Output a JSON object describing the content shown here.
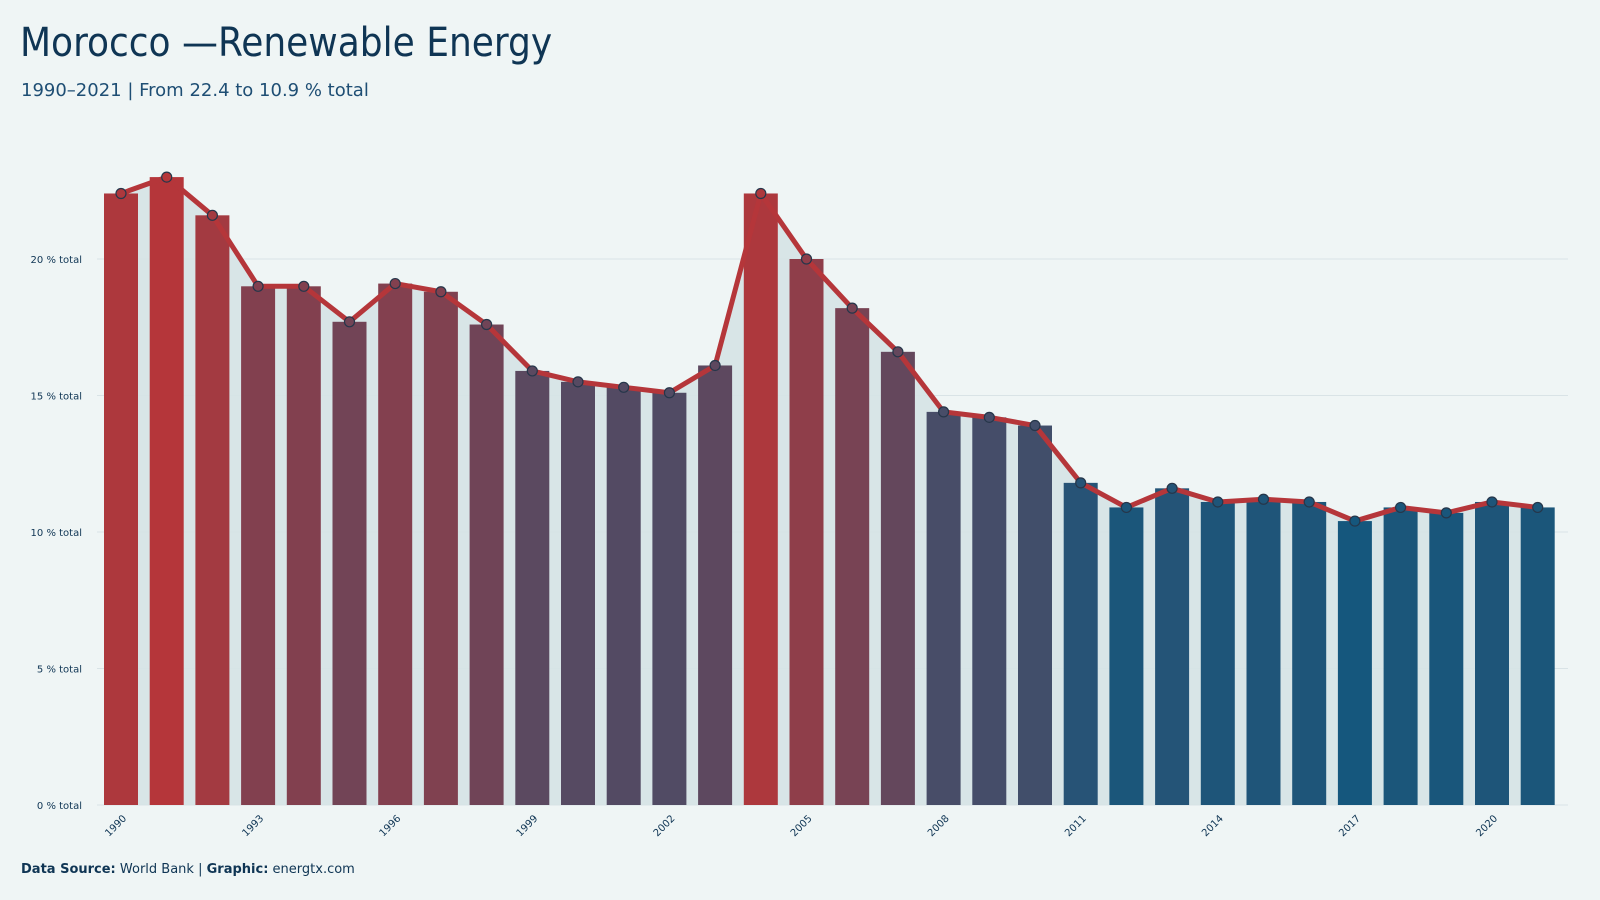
{
  "title": "Morocco —Renewable Energy",
  "subtitle": "1990–2021 | From 22.4 to 10.9 % total",
  "footer": {
    "source_label": "Data Source:",
    "source_value": "World Bank",
    "separator": "|",
    "graphic_label": "Graphic:",
    "graphic_value": "energtx.com"
  },
  "colors": {
    "background": "#eff5f5",
    "high": "#b5363a",
    "low": "#15577d",
    "line": "#b5363a",
    "area": "#d5e3e6",
    "grid": "#d9e3e6",
    "text": "#0f3554"
  },
  "chart_data": {
    "type": "bar",
    "x": [
      1990,
      1991,
      1992,
      1993,
      1994,
      1995,
      1996,
      1997,
      1998,
      1999,
      2000,
      2001,
      2002,
      2003,
      2004,
      2005,
      2006,
      2007,
      2008,
      2009,
      2010,
      2011,
      2012,
      2013,
      2014,
      2015,
      2016,
      2017,
      2018,
      2019,
      2020,
      2021
    ],
    "values": [
      22.4,
      23.0,
      21.6,
      19.0,
      19.0,
      17.7,
      19.1,
      18.8,
      17.6,
      15.9,
      15.5,
      15.3,
      15.1,
      16.1,
      22.4,
      20.0,
      18.2,
      16.6,
      14.4,
      14.2,
      13.9,
      11.8,
      10.9,
      11.6,
      11.1,
      11.2,
      11.1,
      10.4,
      10.9,
      10.7,
      11.1,
      10.9
    ],
    "overlay": "line with markers and shaded area",
    "unit": "% total",
    "ylim": [
      0,
      24
    ],
    "yticks": [
      0,
      5,
      10,
      15,
      20
    ],
    "ytick_labels": [
      "0 % total",
      "5 % total",
      "10 % total",
      "15 % total",
      "20 % total"
    ],
    "xtick_labels": [
      "1990",
      "1993",
      "1996",
      "1999",
      "2002",
      "2005",
      "2008",
      "2011",
      "2014",
      "2017",
      "2020"
    ],
    "grid": true,
    "legend": "none"
  }
}
